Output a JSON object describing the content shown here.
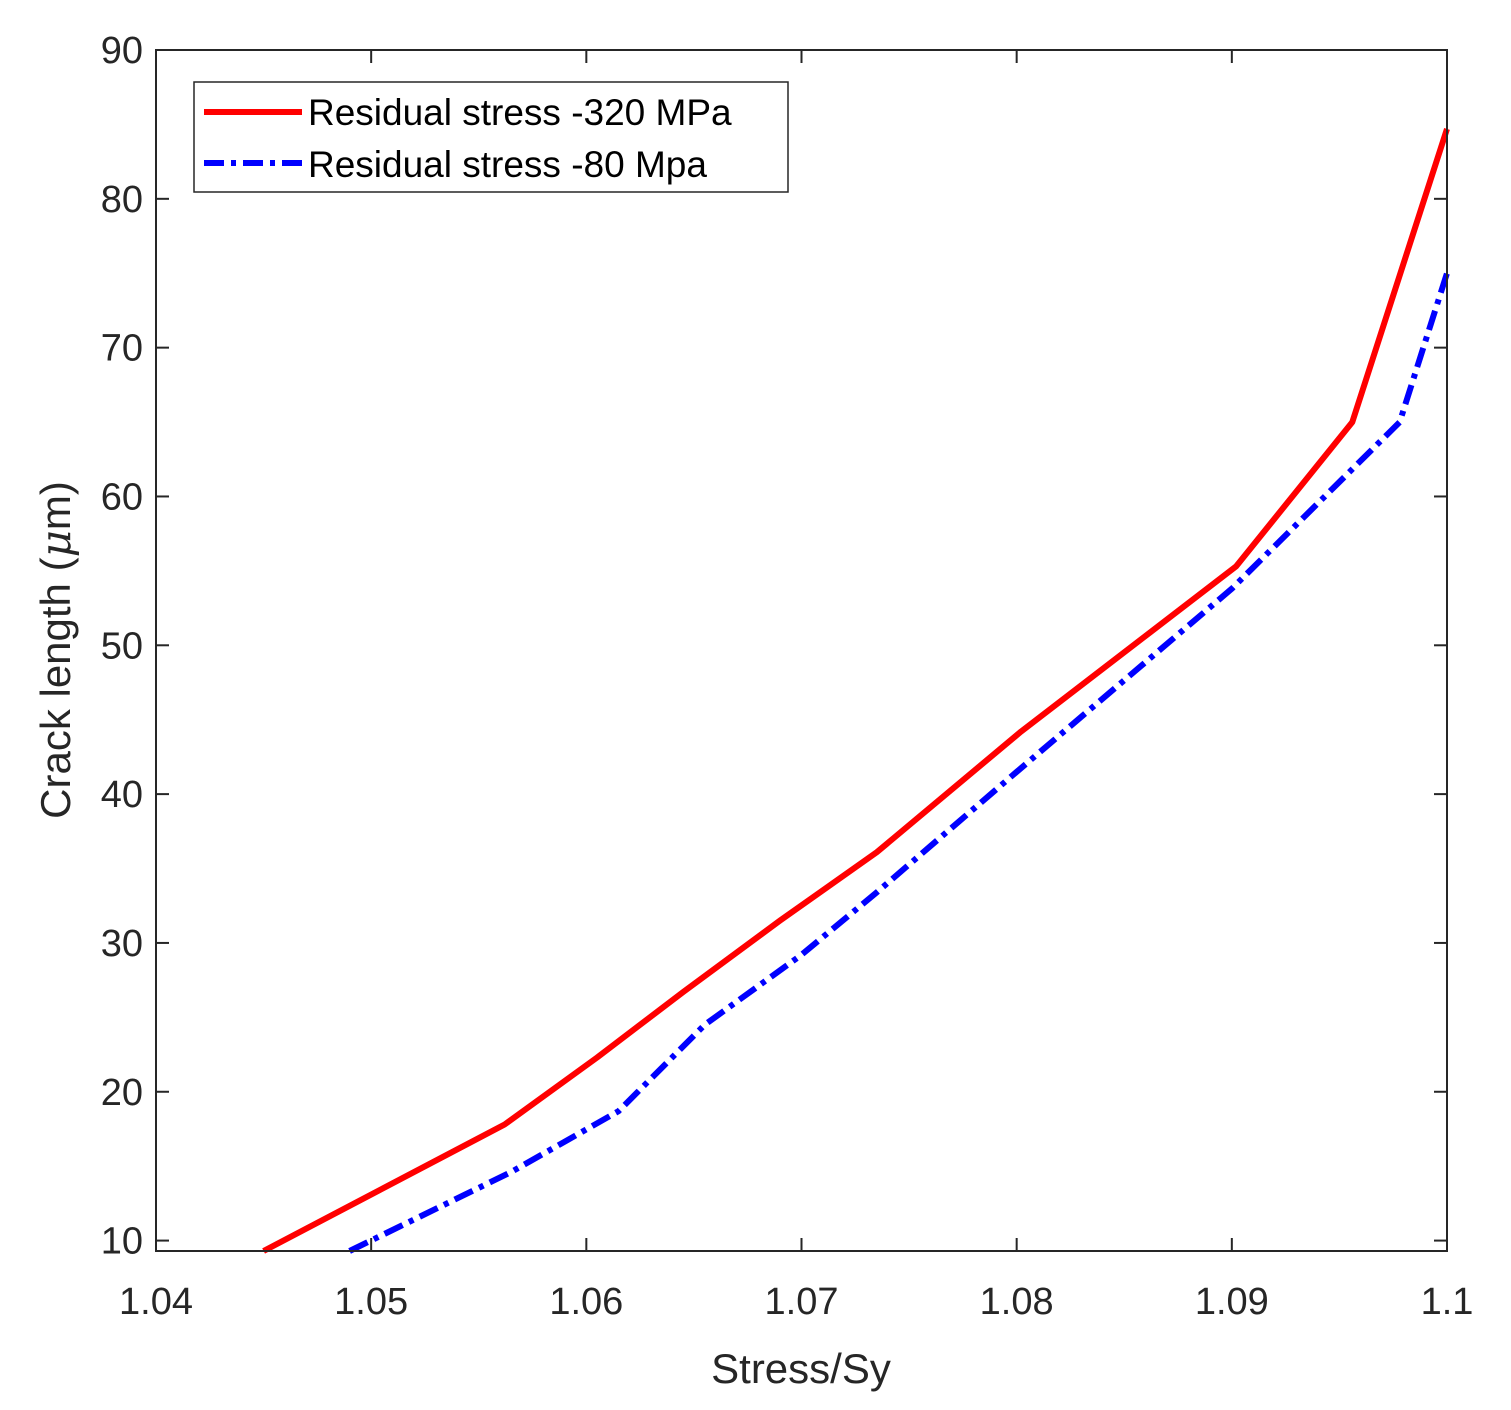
{
  "chart_data": {
    "type": "line",
    "title": "",
    "xlabel": "Stress/Sy",
    "ylabel_prefix": "Crack length (",
    "ylabel_mu": "μ",
    "ylabel_suffix": "m)",
    "xlim": [
      1.04,
      1.1
    ],
    "ylim": [
      9.3,
      90
    ],
    "x_ticks": [
      1.04,
      1.05,
      1.06,
      1.07,
      1.08,
      1.09,
      1.1
    ],
    "x_tick_labels": [
      "1.04",
      "1.05",
      "1.06",
      "1.07",
      "1.08",
      "1.09",
      "1.1"
    ],
    "y_ticks": [
      10,
      20,
      30,
      40,
      50,
      60,
      70,
      80,
      90
    ],
    "y_tick_labels": [
      "10",
      "20",
      "30",
      "40",
      "50",
      "60",
      "70",
      "80",
      "90"
    ],
    "grid": false,
    "legend_position": "top-left",
    "series": [
      {
        "name": "Residual stress -320 MPa",
        "color": "#ff0000",
        "style": "solid",
        "x": [
          1.045,
          1.0562,
          1.0605,
          1.0645,
          1.069,
          1.0735,
          1.0802,
          1.0902,
          1.0956,
          1.1
        ],
        "y": [
          9.3,
          17.8,
          22.3,
          26.7,
          31.5,
          36.1,
          44.2,
          55.3,
          65.0,
          84.7
        ]
      },
      {
        "name": "Residual stress -80 Mpa",
        "color": "#0000ff",
        "style": "dash-dot",
        "x": [
          1.049,
          1.0565,
          1.0615,
          1.0655,
          1.07,
          1.0735,
          1.08,
          1.09,
          1.0978,
          1.1
        ],
        "y": [
          9.3,
          14.6,
          18.7,
          24.5,
          29.2,
          33.4,
          41.5,
          53.8,
          65.0,
          75.0
        ]
      }
    ]
  }
}
